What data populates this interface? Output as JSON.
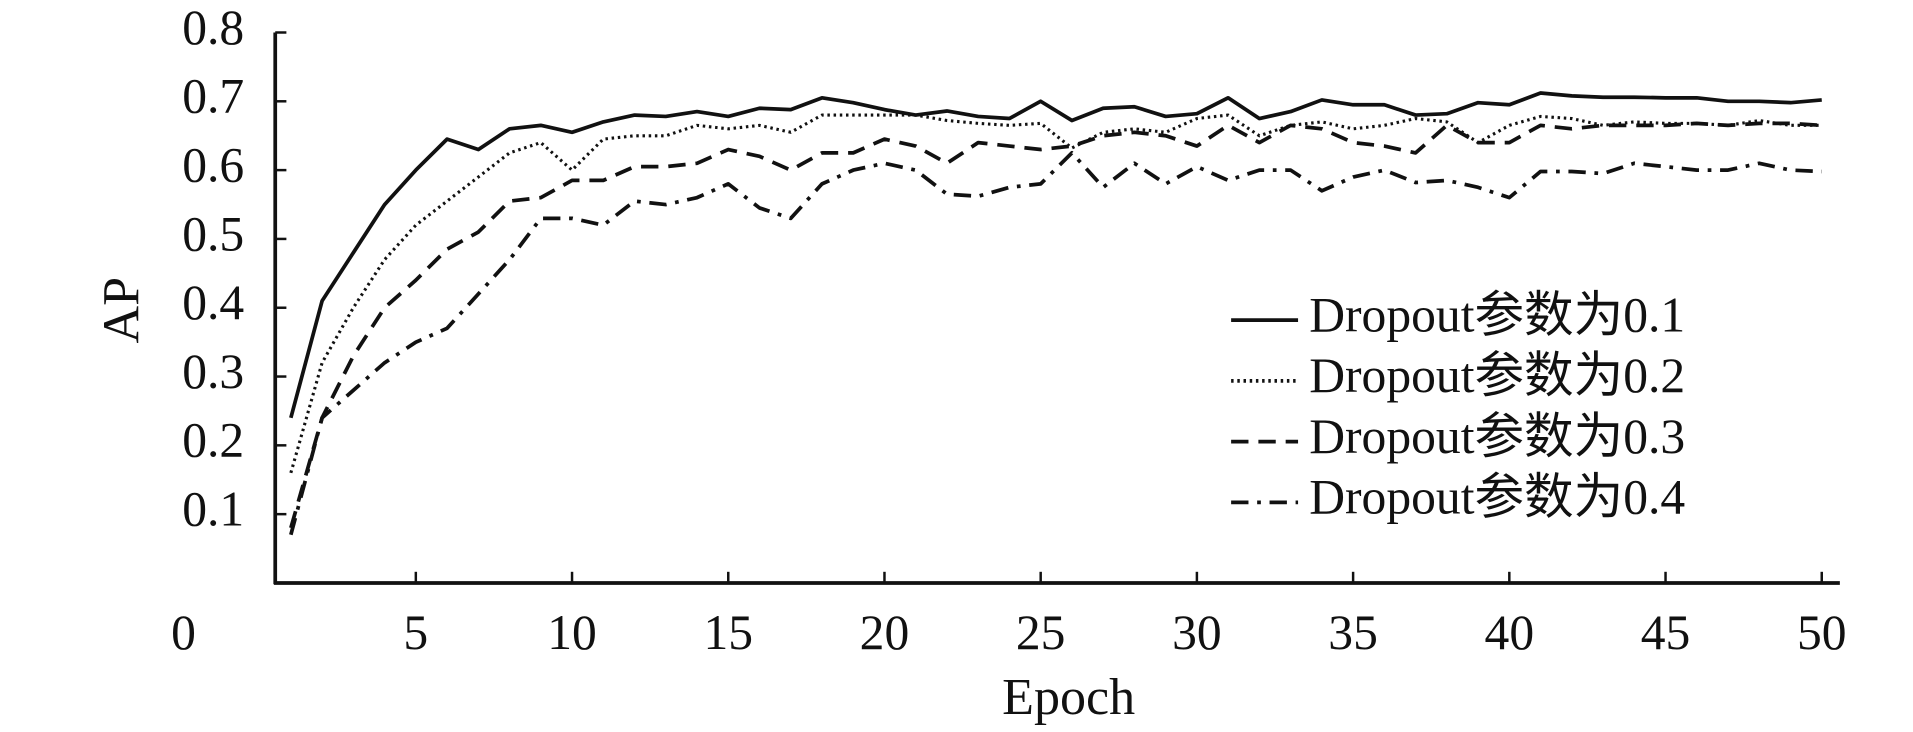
{
  "chart_data": {
    "type": "line",
    "x_label": "Epoch",
    "y_label": "AP",
    "x": [
      1,
      2,
      3,
      4,
      5,
      6,
      7,
      8,
      9,
      10,
      11,
      12,
      13,
      14,
      15,
      16,
      17,
      18,
      19,
      20,
      21,
      22,
      23,
      24,
      25,
      26,
      27,
      28,
      29,
      30,
      31,
      32,
      33,
      34,
      35,
      36,
      37,
      38,
      39,
      40,
      41,
      42,
      43,
      44,
      45,
      46,
      47,
      48,
      49,
      50
    ],
    "xlim": [
      0.5,
      50.5
    ],
    "xticks": [
      5,
      10,
      15,
      20,
      25,
      30,
      35,
      40,
      45,
      50
    ],
    "ylim": [
      0,
      0.8
    ],
    "yticks": [
      0,
      0.1,
      0.2,
      0.3,
      0.4,
      0.5,
      0.6,
      0.7,
      0.8
    ],
    "grid": false,
    "legend": "right",
    "series": [
      {
        "name": "Dropout参数为0.1",
        "color": "#111111",
        "line_style": "solid",
        "values": [
          0.24,
          0.41,
          0.48,
          0.55,
          0.6,
          0.645,
          0.63,
          0.66,
          0.665,
          0.655,
          0.67,
          0.68,
          0.678,
          0.685,
          0.678,
          0.69,
          0.688,
          0.705,
          0.698,
          0.688,
          0.68,
          0.686,
          0.678,
          0.675,
          0.7,
          0.672,
          0.69,
          0.692,
          0.678,
          0.682,
          0.705,
          0.675,
          0.685,
          0.702,
          0.695,
          0.695,
          0.68,
          0.682,
          0.698,
          0.695,
          0.712,
          0.708,
          0.706,
          0.706,
          0.705,
          0.705,
          0.7,
          0.7,
          0.698,
          0.702
        ]
      },
      {
        "name": "Dropout参数为0.2",
        "color": "#111111",
        "line_style": "dotted",
        "values": [
          0.16,
          0.32,
          0.4,
          0.47,
          0.52,
          0.555,
          0.59,
          0.625,
          0.64,
          0.6,
          0.645,
          0.65,
          0.65,
          0.665,
          0.66,
          0.665,
          0.655,
          0.68,
          0.68,
          0.68,
          0.68,
          0.672,
          0.668,
          0.665,
          0.668,
          0.632,
          0.655,
          0.66,
          0.655,
          0.675,
          0.68,
          0.65,
          0.665,
          0.67,
          0.66,
          0.665,
          0.675,
          0.67,
          0.64,
          0.665,
          0.678,
          0.675,
          0.665,
          0.67,
          0.668,
          0.668,
          0.665,
          0.672,
          0.665,
          0.665
        ]
      },
      {
        "name": "Dropout参数为0.3",
        "color": "#111111",
        "line_style": "dashed",
        "values": [
          0.08,
          0.24,
          0.33,
          0.4,
          0.44,
          0.485,
          0.51,
          0.555,
          0.56,
          0.585,
          0.585,
          0.605,
          0.605,
          0.61,
          0.63,
          0.62,
          0.6,
          0.625,
          0.625,
          0.645,
          0.635,
          0.61,
          0.64,
          0.635,
          0.63,
          0.635,
          0.65,
          0.655,
          0.65,
          0.635,
          0.665,
          0.64,
          0.665,
          0.66,
          0.64,
          0.635,
          0.625,
          0.665,
          0.64,
          0.64,
          0.665,
          0.66,
          0.665,
          0.665,
          0.665,
          0.668,
          0.665,
          0.668,
          0.668,
          0.665
        ]
      },
      {
        "name": "Dropout参数为0.4",
        "color": "#111111",
        "line_style": "dashdot",
        "values": [
          0.07,
          0.24,
          0.28,
          0.32,
          0.35,
          0.37,
          0.42,
          0.47,
          0.53,
          0.53,
          0.52,
          0.555,
          0.55,
          0.56,
          0.58,
          0.545,
          0.53,
          0.58,
          0.6,
          0.61,
          0.6,
          0.565,
          0.562,
          0.575,
          0.58,
          0.625,
          0.575,
          0.61,
          0.58,
          0.605,
          0.585,
          0.6,
          0.6,
          0.57,
          0.59,
          0.6,
          0.582,
          0.585,
          0.575,
          0.56,
          0.598,
          0.598,
          0.595,
          0.61,
          0.605,
          0.6,
          0.6,
          0.61,
          0.6,
          0.598
        ]
      }
    ]
  }
}
